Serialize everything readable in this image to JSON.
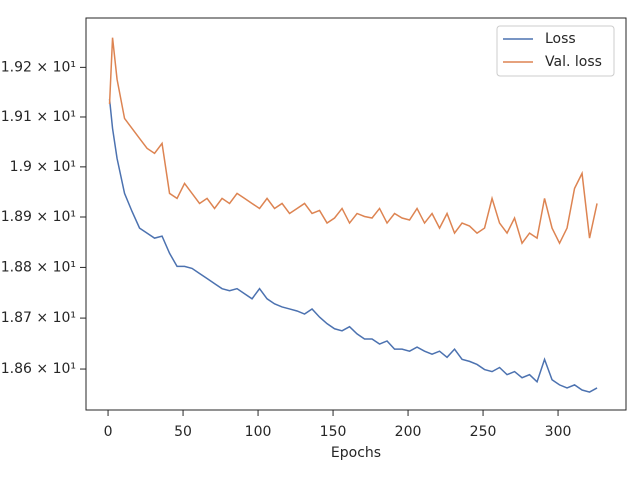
{
  "chart_data": {
    "type": "line",
    "x_label": "Epochs",
    "log_y": true,
    "legend": "upper right",
    "grid": false,
    "x": [
      1,
      3,
      6,
      11,
      16,
      21,
      26,
      31,
      36,
      41,
      46,
      51,
      56,
      61,
      66,
      71,
      76,
      81,
      86,
      91,
      96,
      101,
      106,
      111,
      116,
      121,
      126,
      131,
      136,
      141,
      146,
      151,
      156,
      161,
      166,
      171,
      176,
      181,
      186,
      191,
      196,
      201,
      206,
      211,
      216,
      221,
      226,
      231,
      236,
      241,
      246,
      251,
      256,
      261,
      266,
      271,
      276,
      281,
      286,
      291,
      296,
      301,
      306,
      311,
      316,
      321,
      326
    ],
    "series": [
      {
        "name": "Loss",
        "color": "#4c72b0",
        "values": [
          19.136,
          19.077,
          19.017,
          18.947,
          18.911,
          18.878,
          18.868,
          18.858,
          18.862,
          18.828,
          18.802,
          18.802,
          18.798,
          18.788,
          18.778,
          18.768,
          18.758,
          18.754,
          18.758,
          18.748,
          18.738,
          18.758,
          18.738,
          18.728,
          18.722,
          18.718,
          18.714,
          18.708,
          18.718,
          18.702,
          18.689,
          18.679,
          18.675,
          18.683,
          18.669,
          18.659,
          18.659,
          18.649,
          18.655,
          18.639,
          18.639,
          18.635,
          18.643,
          18.635,
          18.629,
          18.635,
          18.623,
          18.639,
          18.619,
          18.615,
          18.609,
          18.599,
          18.595,
          18.603,
          18.589,
          18.595,
          18.583,
          18.589,
          18.575,
          18.619,
          18.579,
          18.569,
          18.563,
          18.569,
          18.559,
          18.555,
          18.563
        ]
      },
      {
        "name": "Val. loss",
        "color": "#dd8452",
        "values": [
          19.126,
          19.26,
          19.176,
          19.097,
          19.077,
          19.057,
          19.037,
          19.027,
          19.047,
          18.947,
          18.937,
          18.967,
          18.947,
          18.927,
          18.937,
          18.917,
          18.937,
          18.927,
          18.947,
          18.937,
          18.927,
          18.917,
          18.937,
          18.917,
          18.927,
          18.907,
          18.917,
          18.927,
          18.907,
          18.913,
          18.888,
          18.898,
          18.917,
          18.888,
          18.907,
          18.901,
          18.898,
          18.917,
          18.888,
          18.907,
          18.898,
          18.894,
          18.917,
          18.888,
          18.907,
          18.878,
          18.907,
          18.868,
          18.888,
          18.882,
          18.868,
          18.878,
          18.937,
          18.888,
          18.868,
          18.898,
          18.848,
          18.868,
          18.858,
          18.937,
          18.878,
          18.848,
          18.878,
          18.957,
          18.987,
          18.858,
          18.927
        ]
      }
    ],
    "xlim": [
      -14.7,
      345.3
    ],
    "xticks": [
      0,
      50,
      100,
      150,
      200,
      250,
      300
    ],
    "ylim": [
      18.52,
      19.3
    ],
    "yticks": [
      {
        "value": 18.6,
        "label": "1.86 × 10¹"
      },
      {
        "value": 18.7,
        "label": "1.87 × 10¹"
      },
      {
        "value": 18.8,
        "label": "1.88 × 10¹"
      },
      {
        "value": 18.9,
        "label": "1.89 × 10¹"
      },
      {
        "value": 19.0,
        "label": "1.9 × 10¹"
      },
      {
        "value": 19.1,
        "label": "1.91 × 10¹"
      },
      {
        "value": 19.2,
        "label": "1.92 × 10¹"
      }
    ]
  }
}
